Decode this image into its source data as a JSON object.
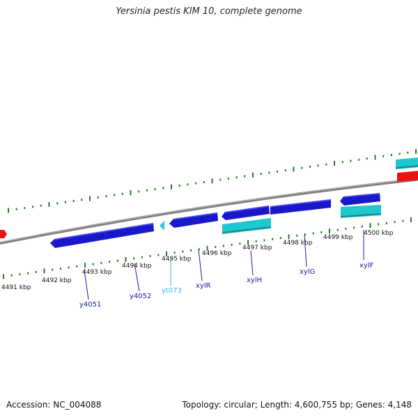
{
  "title": "Yersinia pestis KIM 10, complete genome",
  "footer": {
    "accession": "Accession: NC_004088",
    "summary": "Topology: circular; Length: 4,600,755 bp; Genes: 4,148"
  },
  "colors": {
    "backbone": "#8a8a8a",
    "tick": "#1f7a1f",
    "cds_strand": "#1d1dcf",
    "cds_light": "#2a2aff",
    "rna_cyan": "#1fc8cf",
    "red": "#ee1111",
    "label_blue": "#1a1aa0",
    "label_cyan": "#3fb8d8"
  },
  "ticks": [
    {
      "label": "4491 kbp"
    },
    {
      "label": "4492 kbp"
    },
    {
      "label": "4493 kbp"
    },
    {
      "label": "4494 kbp"
    },
    {
      "label": "4495 kbp"
    },
    {
      "label": "4496 kbp"
    },
    {
      "label": "4497 kbp"
    },
    {
      "label": "4498 kbp"
    },
    {
      "label": "4499 kbp"
    },
    {
      "label": "4500 kbp"
    }
  ],
  "genes": [
    {
      "name": "y4051"
    },
    {
      "name": "y4052"
    },
    {
      "name": "yt073"
    },
    {
      "name": "xylR"
    },
    {
      "name": "xylH"
    },
    {
      "name": "xylG"
    },
    {
      "name": "xylF"
    }
  ]
}
